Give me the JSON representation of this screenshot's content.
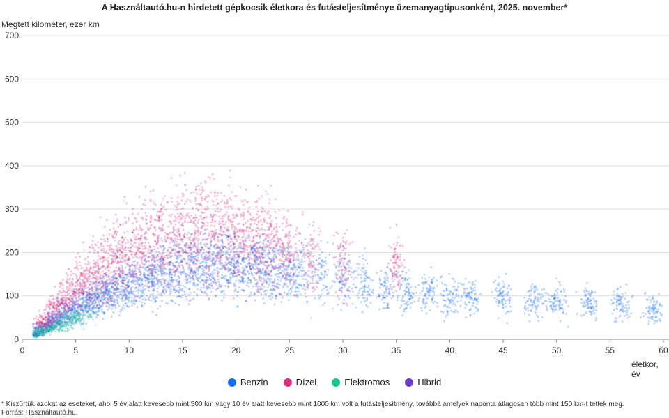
{
  "chart_data": {
    "type": "scatter",
    "title": "A Használtautó.hu-n hirdetett gépkocsik életkora és futásteljesítménye üzemanyagtípusonként, 2025. november*",
    "xlabel": "életkor, év",
    "ylabel": "Megtett kilométer, ezer km",
    "xlim": [
      0,
      60
    ],
    "ylim": [
      0,
      700
    ],
    "xticks": [
      "0",
      "5",
      "10",
      "15",
      "20",
      "25",
      "30",
      "35",
      "40",
      "45",
      "50",
      "55",
      "60"
    ],
    "yticks": [
      "0",
      "100",
      "200",
      "300",
      "400",
      "500",
      "600",
      "700"
    ],
    "grid": "horizontal",
    "legend_position": "bottom",
    "series": [
      {
        "name": "Benzin",
        "color": "#1a6ef5",
        "points": [
          [
            1,
            10
          ],
          [
            2,
            25
          ],
          [
            3,
            40
          ],
          [
            4,
            55
          ],
          [
            5,
            65
          ],
          [
            6,
            80
          ],
          [
            7,
            90
          ],
          [
            8,
            100
          ],
          [
            9,
            110
          ],
          [
            10,
            120
          ],
          [
            11,
            130
          ],
          [
            12,
            140
          ],
          [
            13,
            150
          ],
          [
            14,
            155
          ],
          [
            15,
            160
          ],
          [
            16,
            165
          ],
          [
            17,
            170
          ],
          [
            18,
            175
          ],
          [
            19,
            175
          ],
          [
            20,
            175
          ],
          [
            21,
            170
          ],
          [
            22,
            170
          ],
          [
            23,
            165
          ],
          [
            24,
            160
          ],
          [
            25,
            160
          ],
          [
            26,
            155
          ],
          [
            28,
            150
          ],
          [
            30,
            140
          ],
          [
            32,
            130
          ],
          [
            34,
            120
          ],
          [
            36,
            110
          ],
          [
            38,
            110
          ],
          [
            40,
            100
          ],
          [
            42,
            100
          ],
          [
            45,
            100
          ],
          [
            48,
            90
          ],
          [
            50,
            90
          ],
          [
            53,
            80
          ],
          [
            56,
            80
          ],
          [
            59,
            70
          ]
        ]
      },
      {
        "name": "Dízel",
        "color": "#d6317f",
        "points": [
          [
            2,
            40
          ],
          [
            3,
            70
          ],
          [
            4,
            100
          ],
          [
            5,
            120
          ],
          [
            6,
            140
          ],
          [
            7,
            160
          ],
          [
            8,
            180
          ],
          [
            9,
            190
          ],
          [
            10,
            205
          ],
          [
            11,
            215
          ],
          [
            12,
            225
          ],
          [
            13,
            235
          ],
          [
            14,
            240
          ],
          [
            15,
            245
          ],
          [
            16,
            250
          ],
          [
            17,
            250
          ],
          [
            18,
            250
          ],
          [
            19,
            245
          ],
          [
            20,
            240
          ],
          [
            21,
            235
          ],
          [
            22,
            230
          ],
          [
            23,
            220
          ],
          [
            24,
            210
          ],
          [
            25,
            200
          ],
          [
            27,
            190
          ],
          [
            30,
            180
          ],
          [
            35,
            170
          ]
        ]
      },
      {
        "name": "Elektromos",
        "color": "#1ec48f",
        "points": [
          [
            1,
            8
          ],
          [
            1.5,
            15
          ],
          [
            2,
            20
          ],
          [
            2.5,
            25
          ],
          [
            3,
            30
          ],
          [
            3.5,
            35
          ],
          [
            4,
            40
          ],
          [
            4.5,
            45
          ],
          [
            5,
            50
          ],
          [
            6,
            55
          ]
        ]
      },
      {
        "name": "Hibrid",
        "color": "#6b3fc4",
        "points": [
          [
            1,
            15
          ],
          [
            2,
            30
          ],
          [
            3,
            50
          ],
          [
            4,
            70
          ],
          [
            5,
            85
          ],
          [
            6,
            100
          ],
          [
            7,
            115
          ],
          [
            8,
            125
          ],
          [
            9,
            135
          ],
          [
            10,
            145
          ],
          [
            12,
            160
          ],
          [
            14,
            170
          ],
          [
            16,
            175
          ],
          [
            18,
            180
          ],
          [
            20,
            180
          ],
          [
            22,
            175
          ]
        ]
      }
    ]
  },
  "footnote": "* Kiszűrtük azokat az eseteket, ahol 5 év alatt kevesebb mint 500 km vagy 10 év alatt kevesebb mint 1000 km volt a futásteljesítmény, továbbá amelyek naponta átlagosan több mint 150 km-t tettek meg.",
  "source": "Forrás: Használtautó.hu."
}
